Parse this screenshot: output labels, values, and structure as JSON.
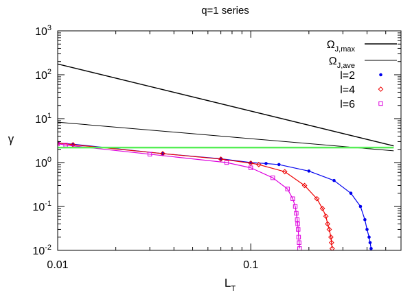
{
  "chart_data": {
    "type": "line",
    "title": "q=1 series",
    "xlabel": {
      "main": "L",
      "sub": "T"
    },
    "ylabel": "γ",
    "x_scale": "log",
    "y_scale": "log",
    "xlim": [
      0.01,
      0.6
    ],
    "ylim": [
      0.01,
      1000
    ],
    "legend_position": "top-right",
    "x_ticks": [
      {
        "value": 0.01,
        "label": "0.01"
      },
      {
        "value": 0.1,
        "label": "0.1"
      }
    ],
    "y_ticks": [
      {
        "value": 0.01,
        "base": "10",
        "exp": "-2"
      },
      {
        "value": 0.1,
        "base": "10",
        "exp": "-1"
      },
      {
        "value": 1,
        "base": "10",
        "exp": "0"
      },
      {
        "value": 10,
        "base": "10",
        "exp": "1"
      },
      {
        "value": 100,
        "base": "10",
        "exp": "2"
      },
      {
        "value": 1000,
        "base": "10",
        "exp": "3"
      }
    ],
    "colors": {
      "omega_max": "#000000",
      "omega_ave": "#000000",
      "l2": "#0000ee",
      "l4": "#ee0000",
      "l6": "#dd00dd",
      "reference": "#55ee55"
    },
    "series": [
      {
        "name": {
          "main": "Ω",
          "sub": "J,max"
        },
        "key": "omega_max",
        "style": "line",
        "stroke": 1.4,
        "points": [
          [
            0.01,
            176
          ],
          [
            0.55,
            2.4
          ]
        ]
      },
      {
        "name": {
          "main": "Ω",
          "sub": "J,ave"
        },
        "key": "omega_ave",
        "style": "line",
        "stroke": 1.0,
        "points": [
          [
            0.01,
            8.3
          ],
          [
            0.55,
            1.85
          ]
        ]
      },
      {
        "name": "l=2",
        "key": "l2",
        "style": "line+markers",
        "marker": "dot",
        "points": [
          [
            0.01,
            2.8
          ],
          [
            0.012,
            2.62
          ],
          [
            0.035,
            1.6
          ],
          [
            0.07,
            1.22
          ],
          [
            0.1,
            1.0
          ],
          [
            0.12,
            0.95
          ],
          [
            0.14,
            0.9
          ],
          [
            0.2,
            0.64
          ],
          [
            0.27,
            0.39
          ],
          [
            0.33,
            0.2
          ],
          [
            0.37,
            0.1
          ],
          [
            0.39,
            0.05
          ],
          [
            0.4,
            0.03
          ],
          [
            0.41,
            0.02
          ],
          [
            0.415,
            0.015
          ],
          [
            0.42,
            0.011
          ]
        ]
      },
      {
        "name": "l=4",
        "key": "l4",
        "style": "line+markers",
        "marker": "diamond",
        "points": [
          [
            0.01,
            2.8
          ],
          [
            0.012,
            2.55
          ],
          [
            0.035,
            1.6
          ],
          [
            0.07,
            1.2
          ],
          [
            0.1,
            0.97
          ],
          [
            0.11,
            0.9
          ],
          [
            0.15,
            0.62
          ],
          [
            0.19,
            0.3
          ],
          [
            0.22,
            0.15
          ],
          [
            0.235,
            0.09
          ],
          [
            0.245,
            0.06
          ],
          [
            0.25,
            0.04
          ],
          [
            0.255,
            0.03
          ],
          [
            0.26,
            0.02
          ],
          [
            0.262,
            0.015
          ],
          [
            0.264,
            0.011
          ]
        ]
      },
      {
        "name": "l=6",
        "key": "l6",
        "style": "line+markers",
        "marker": "square",
        "points": [
          [
            0.01,
            2.7
          ],
          [
            0.011,
            2.5
          ],
          [
            0.03,
            1.55
          ],
          [
            0.075,
            1.0
          ],
          [
            0.1,
            0.76
          ],
          [
            0.13,
            0.45
          ],
          [
            0.155,
            0.25
          ],
          [
            0.165,
            0.15
          ],
          [
            0.17,
            0.1
          ],
          [
            0.172,
            0.07
          ],
          [
            0.174,
            0.05
          ],
          [
            0.175,
            0.04
          ],
          [
            0.176,
            0.03
          ],
          [
            0.177,
            0.02
          ],
          [
            0.178,
            0.015
          ],
          [
            0.179,
            0.011
          ]
        ]
      },
      {
        "name": "",
        "key": "reference",
        "style": "line",
        "stroke": 2.5,
        "legend": false,
        "points": [
          [
            0.01,
            2.2
          ],
          [
            0.55,
            2.2
          ]
        ]
      }
    ]
  }
}
